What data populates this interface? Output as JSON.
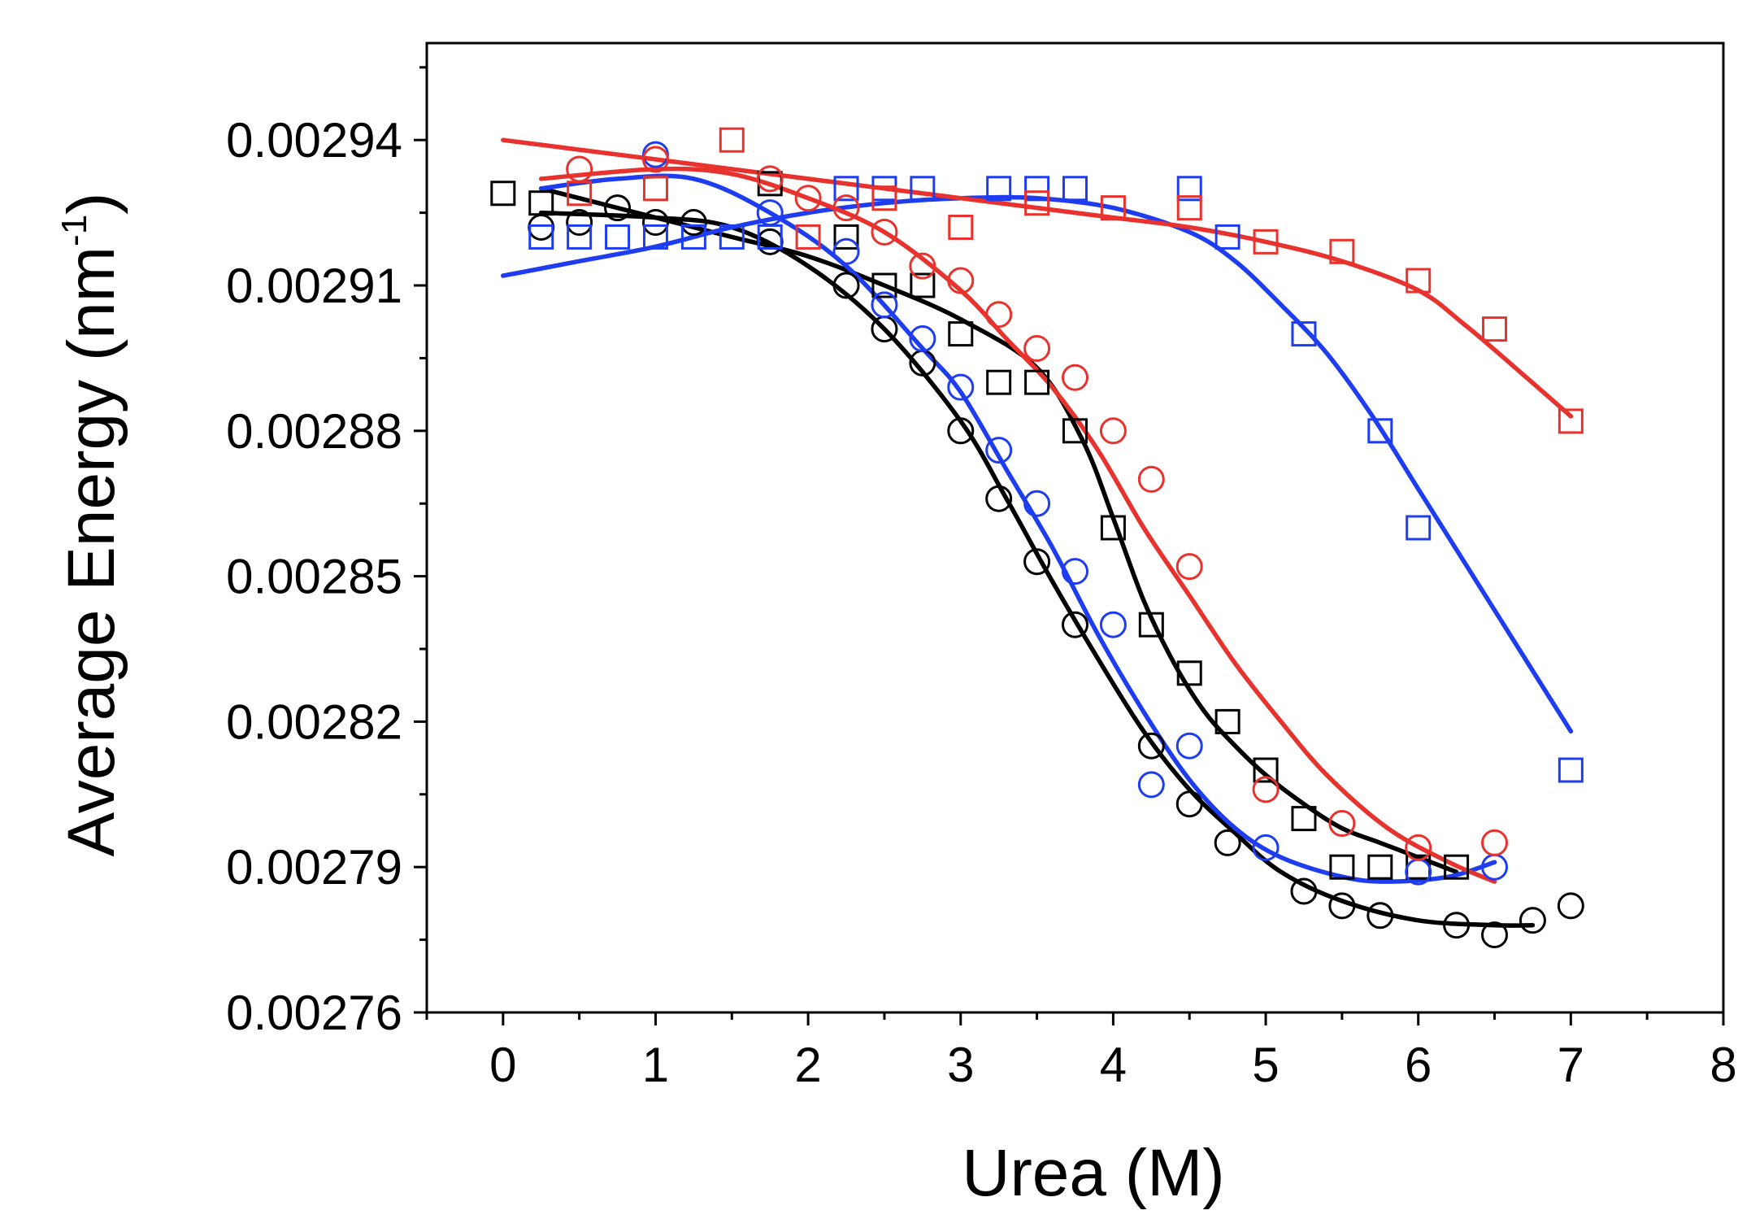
{
  "chart_data": {
    "type": "scatter",
    "title": "",
    "xlabel": "Urea (M)",
    "ylabel_main": "Average Energy (nm",
    "ylabel_sup": "-1",
    "ylabel_close": ")",
    "xlim": [
      -0.5,
      8
    ],
    "ylim": [
      0.00276,
      0.00296
    ],
    "x_ticks": [
      0,
      1,
      2,
      3,
      4,
      5,
      6,
      7,
      8
    ],
    "x_tick_labels": [
      "0",
      "1",
      "2",
      "3",
      "4",
      "5",
      "6",
      "7",
      "8"
    ],
    "y_ticks": [
      0.00276,
      0.00279,
      0.00282,
      0.00285,
      0.00288,
      0.00291,
      0.00294
    ],
    "y_tick_labels": [
      "0.00276",
      "0.00279",
      "0.00282",
      "0.00285",
      "0.00288",
      "0.00291",
      "0.00294"
    ],
    "grid": false,
    "series": [
      {
        "name": "black squares",
        "marker": "square",
        "color": "#000000",
        "points": [
          [
            0,
            0.002929
          ],
          [
            0.25,
            0.002927
          ],
          [
            1.75,
            0.002931
          ],
          [
            2.25,
            0.00292
          ],
          [
            2.5,
            0.00291
          ],
          [
            2.75,
            0.00291
          ],
          [
            3,
            0.0029
          ],
          [
            3.25,
            0.00289
          ],
          [
            3.5,
            0.00289
          ],
          [
            3.75,
            0.00288
          ],
          [
            4,
            0.00286
          ],
          [
            4.25,
            0.00284
          ],
          [
            4.5,
            0.00283
          ],
          [
            4.75,
            0.00282
          ],
          [
            5,
            0.00281
          ],
          [
            5.25,
            0.0028
          ],
          [
            5.5,
            0.00279
          ],
          [
            5.75,
            0.00279
          ],
          [
            6,
            0.00279
          ],
          [
            6.25,
            0.00279
          ]
        ],
        "fit": [
          [
            0.25,
            0.00293
          ],
          [
            1,
            0.002924
          ],
          [
            1.5,
            0.00292
          ],
          [
            2,
            0.002916
          ],
          [
            2.5,
            0.00291
          ],
          [
            3,
            0.002903
          ],
          [
            3.5,
            0.002893
          ],
          [
            3.8,
            0.002878
          ],
          [
            4,
            0.002862
          ],
          [
            4.2,
            0.002845
          ],
          [
            4.4,
            0.002832
          ],
          [
            4.6,
            0.002822
          ],
          [
            4.8,
            0.002815
          ],
          [
            5,
            0.002809
          ],
          [
            5.25,
            0.002803
          ],
          [
            5.5,
            0.002798
          ],
          [
            5.75,
            0.002795
          ],
          [
            6,
            0.002792
          ],
          [
            6.25,
            0.002789
          ]
        ]
      },
      {
        "name": "black circles",
        "marker": "circle",
        "color": "#000000",
        "points": [
          [
            0.25,
            0.002922
          ],
          [
            0.5,
            0.002923
          ],
          [
            0.75,
            0.002926
          ],
          [
            1,
            0.002923
          ],
          [
            1.25,
            0.002923
          ],
          [
            1.75,
            0.002919
          ],
          [
            2.25,
            0.00291
          ],
          [
            2.5,
            0.002901
          ],
          [
            2.75,
            0.002894
          ],
          [
            3,
            0.00288
          ],
          [
            3.25,
            0.002866
          ],
          [
            3.5,
            0.002853
          ],
          [
            3.75,
            0.00284
          ],
          [
            4.25,
            0.002815
          ],
          [
            4.5,
            0.002803
          ],
          [
            4.75,
            0.002795
          ],
          [
            5.25,
            0.002785
          ],
          [
            5.5,
            0.002782
          ],
          [
            5.75,
            0.00278
          ],
          [
            6.25,
            0.002778
          ],
          [
            6.5,
            0.002776
          ],
          [
            6.75,
            0.002779
          ],
          [
            7,
            0.002782
          ]
        ],
        "fit": [
          [
            0.25,
            0.002925
          ],
          [
            1,
            0.002924
          ],
          [
            1.5,
            0.002922
          ],
          [
            2,
            0.002914
          ],
          [
            2.5,
            0.002901
          ],
          [
            3,
            0.002882
          ],
          [
            3.3,
            0.002866
          ],
          [
            3.6,
            0.002849
          ],
          [
            3.9,
            0.002833
          ],
          [
            4.2,
            0.002818
          ],
          [
            4.5,
            0.002806
          ],
          [
            4.8,
            0.002797
          ],
          [
            5.1,
            0.002789
          ],
          [
            5.5,
            0.002783
          ],
          [
            6,
            0.002779
          ],
          [
            6.5,
            0.002778
          ],
          [
            6.75,
            0.002778
          ]
        ]
      },
      {
        "name": "blue squares",
        "marker": "square",
        "color": "#1f3df0",
        "points": [
          [
            0.25,
            0.00292
          ],
          [
            0.5,
            0.00292
          ],
          [
            0.75,
            0.00292
          ],
          [
            1,
            0.00292
          ],
          [
            1.25,
            0.00292
          ],
          [
            1.5,
            0.00292
          ],
          [
            1.75,
            0.00292
          ],
          [
            2.25,
            0.00293
          ],
          [
            2.5,
            0.00293
          ],
          [
            2.75,
            0.00293
          ],
          [
            3.25,
            0.00293
          ],
          [
            3.5,
            0.00293
          ],
          [
            3.75,
            0.00293
          ],
          [
            4.5,
            0.00293
          ],
          [
            4.75,
            0.00292
          ],
          [
            5.25,
            0.0029
          ],
          [
            5.75,
            0.00288
          ],
          [
            6,
            0.00286
          ],
          [
            7,
            0.00281
          ]
        ],
        "fit": [
          [
            0,
            0.002912
          ],
          [
            0.5,
            0.002915
          ],
          [
            1,
            0.002918
          ],
          [
            1.5,
            0.002922
          ],
          [
            2,
            0.002925
          ],
          [
            2.5,
            0.002927
          ],
          [
            3,
            0.002928
          ],
          [
            3.5,
            0.002928
          ],
          [
            4,
            0.002926
          ],
          [
            4.5,
            0.002921
          ],
          [
            4.8,
            0.002915
          ],
          [
            5.1,
            0.002906
          ],
          [
            5.4,
            0.002896
          ],
          [
            5.7,
            0.002883
          ],
          [
            6,
            0.002868
          ],
          [
            6.3,
            0.002853
          ],
          [
            6.6,
            0.002838
          ],
          [
            7,
            0.002818
          ]
        ]
      },
      {
        "name": "blue circles",
        "marker": "circle",
        "color": "#1f3df0",
        "points": [
          [
            1,
            0.002937
          ],
          [
            1.75,
            0.002925
          ],
          [
            2.25,
            0.002917
          ],
          [
            2.5,
            0.002906
          ],
          [
            2.75,
            0.002899
          ],
          [
            3,
            0.002889
          ],
          [
            3.25,
            0.002876
          ],
          [
            3.5,
            0.002865
          ],
          [
            3.75,
            0.002851
          ],
          [
            4,
            0.00284
          ],
          [
            4.25,
            0.002807
          ],
          [
            4.5,
            0.002815
          ],
          [
            5,
            0.002794
          ],
          [
            6,
            0.002789
          ],
          [
            6.5,
            0.00279
          ]
        ],
        "fit": [
          [
            0.25,
            0.00293
          ],
          [
            0.75,
            0.002932
          ],
          [
            1.25,
            0.002932
          ],
          [
            1.75,
            0.002925
          ],
          [
            2.25,
            0.002914
          ],
          [
            2.75,
            0.002897
          ],
          [
            3,
            0.002888
          ],
          [
            3.3,
            0.002872
          ],
          [
            3.6,
            0.002856
          ],
          [
            3.9,
            0.002838
          ],
          [
            4.2,
            0.002822
          ],
          [
            4.5,
            0.002808
          ],
          [
            4.8,
            0.002798
          ],
          [
            5.1,
            0.002792
          ],
          [
            5.5,
            0.002788
          ],
          [
            5.8,
            0.002787
          ],
          [
            6.2,
            0.002788
          ],
          [
            6.5,
            0.002791
          ]
        ]
      },
      {
        "name": "red squares",
        "marker": "square",
        "color": "#e8322d",
        "points": [
          [
            0.5,
            0.002929
          ],
          [
            1,
            0.00293
          ],
          [
            1.5,
            0.00294
          ],
          [
            2,
            0.00292
          ],
          [
            2.5,
            0.002928
          ],
          [
            3,
            0.002922
          ],
          [
            3.5,
            0.002927
          ],
          [
            4,
            0.002926
          ],
          [
            4.5,
            0.002926
          ],
          [
            5,
            0.002919
          ],
          [
            5.5,
            0.002917
          ],
          [
            6,
            0.002911
          ],
          [
            6.5,
            0.002901
          ],
          [
            7,
            0.002882
          ]
        ],
        "fit": [
          [
            0,
            0.00294
          ],
          [
            0.5,
            0.002938
          ],
          [
            1,
            0.002936
          ],
          [
            1.5,
            0.002934
          ],
          [
            2,
            0.002932
          ],
          [
            2.5,
            0.00293
          ],
          [
            3,
            0.002928
          ],
          [
            3.5,
            0.002926
          ],
          [
            4,
            0.002924
          ],
          [
            4.5,
            0.002922
          ],
          [
            5,
            0.002919
          ],
          [
            5.5,
            0.002915
          ],
          [
            6,
            0.002909
          ],
          [
            6.3,
            0.002902
          ],
          [
            6.6,
            0.002894
          ],
          [
            7,
            0.002883
          ]
        ]
      },
      {
        "name": "red circles",
        "marker": "circle",
        "color": "#e8322d",
        "points": [
          [
            0.5,
            0.002934
          ],
          [
            1,
            0.002936
          ],
          [
            1.75,
            0.002932
          ],
          [
            2,
            0.002928
          ],
          [
            2.25,
            0.002926
          ],
          [
            2.5,
            0.002921
          ],
          [
            2.75,
            0.002914
          ],
          [
            3,
            0.002911
          ],
          [
            3.25,
            0.002904
          ],
          [
            3.5,
            0.002897
          ],
          [
            3.75,
            0.002891
          ],
          [
            4,
            0.00288
          ],
          [
            4.25,
            0.00287
          ],
          [
            4.5,
            0.002852
          ],
          [
            5,
            0.002806
          ],
          [
            5.5,
            0.002799
          ],
          [
            6,
            0.002794
          ],
          [
            6.5,
            0.002795
          ]
        ],
        "fit": [
          [
            0.25,
            0.002932
          ],
          [
            1,
            0.002934
          ],
          [
            1.5,
            0.002933
          ],
          [
            2,
            0.002928
          ],
          [
            2.5,
            0.002921
          ],
          [
            3,
            0.002909
          ],
          [
            3.3,
            0.002899
          ],
          [
            3.6,
            0.002889
          ],
          [
            3.9,
            0.002876
          ],
          [
            4.2,
            0.00286
          ],
          [
            4.5,
            0.002846
          ],
          [
            4.8,
            0.002832
          ],
          [
            5.1,
            0.00282
          ],
          [
            5.4,
            0.002809
          ],
          [
            5.8,
            0.002798
          ],
          [
            6.2,
            0.002791
          ],
          [
            6.5,
            0.002787
          ]
        ]
      }
    ]
  }
}
